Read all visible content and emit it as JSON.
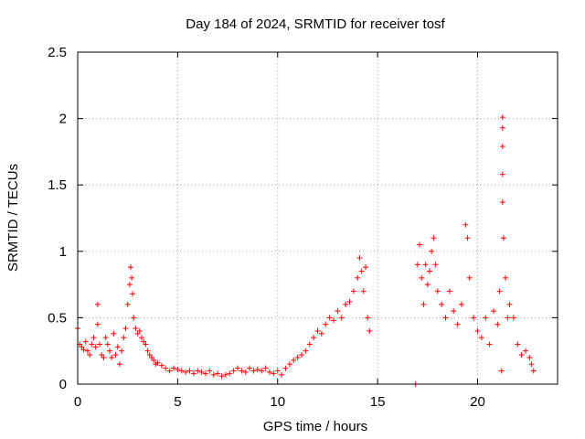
{
  "chart_data": {
    "type": "scatter",
    "title": "Day 184 of 2024, SRMTID for receiver tosf",
    "xlabel": "GPS time / hours",
    "ylabel": "SRMTID / TECUs",
    "xlim": [
      0,
      24
    ],
    "ylim": [
      0,
      2.5
    ],
    "xticks": [
      0,
      5,
      10,
      15,
      20
    ],
    "xtick_labels": [
      "0",
      "5",
      "10",
      "15",
      "20"
    ],
    "yticks": [
      0,
      0.5,
      1,
      1.5,
      2,
      2.5
    ],
    "ytick_labels": [
      "0",
      "0.5",
      "1",
      "1.5",
      "2",
      "2.5"
    ],
    "grid": true,
    "marker": "+",
    "color": "#ff0000",
    "series": [
      {
        "name": "SRMTID",
        "points": [
          [
            0.0,
            0.42
          ],
          [
            0.1,
            0.3
          ],
          [
            0.2,
            0.28
          ],
          [
            0.3,
            0.26
          ],
          [
            0.4,
            0.32
          ],
          [
            0.5,
            0.25
          ],
          [
            0.6,
            0.22
          ],
          [
            0.7,
            0.3
          ],
          [
            0.8,
            0.35
          ],
          [
            0.9,
            0.28
          ],
          [
            1.0,
            0.45
          ],
          [
            1.0,
            0.6
          ],
          [
            1.1,
            0.3
          ],
          [
            1.2,
            0.22
          ],
          [
            1.3,
            0.2
          ],
          [
            1.4,
            0.35
          ],
          [
            1.5,
            0.3
          ],
          [
            1.6,
            0.25
          ],
          [
            1.7,
            0.2
          ],
          [
            1.8,
            0.38
          ],
          [
            1.9,
            0.22
          ],
          [
            2.0,
            0.28
          ],
          [
            2.1,
            0.15
          ],
          [
            2.2,
            0.25
          ],
          [
            2.3,
            0.35
          ],
          [
            2.4,
            0.42
          ],
          [
            2.5,
            0.6
          ],
          [
            2.6,
            0.75
          ],
          [
            2.65,
            0.88
          ],
          [
            2.7,
            0.8
          ],
          [
            2.75,
            0.68
          ],
          [
            2.8,
            0.5
          ],
          [
            2.9,
            0.42
          ],
          [
            3.0,
            0.38
          ],
          [
            3.1,
            0.4
          ],
          [
            3.2,
            0.35
          ],
          [
            3.3,
            0.32
          ],
          [
            3.4,
            0.3
          ],
          [
            3.5,
            0.25
          ],
          [
            3.6,
            0.22
          ],
          [
            3.7,
            0.2
          ],
          [
            3.8,
            0.18
          ],
          [
            3.9,
            0.15
          ],
          [
            4.0,
            0.16
          ],
          [
            4.2,
            0.14
          ],
          [
            4.4,
            0.12
          ],
          [
            4.6,
            0.1
          ],
          [
            4.8,
            0.12
          ],
          [
            5.0,
            0.11
          ],
          [
            5.2,
            0.1
          ],
          [
            5.4,
            0.09
          ],
          [
            5.6,
            0.1
          ],
          [
            5.8,
            0.08
          ],
          [
            6.0,
            0.1
          ],
          [
            6.2,
            0.09
          ],
          [
            6.4,
            0.08
          ],
          [
            6.6,
            0.1
          ],
          [
            6.8,
            0.07
          ],
          [
            7.0,
            0.08
          ],
          [
            7.2,
            0.06
          ],
          [
            7.4,
            0.07
          ],
          [
            7.6,
            0.08
          ],
          [
            7.8,
            0.1
          ],
          [
            8.0,
            0.12
          ],
          [
            8.2,
            0.1
          ],
          [
            8.4,
            0.09
          ],
          [
            8.6,
            0.12
          ],
          [
            8.8,
            0.1
          ],
          [
            9.0,
            0.11
          ],
          [
            9.2,
            0.1
          ],
          [
            9.4,
            0.12
          ],
          [
            9.6,
            0.09
          ],
          [
            9.8,
            0.08
          ],
          [
            10.0,
            0.1
          ],
          [
            10.2,
            0.07
          ],
          [
            10.4,
            0.12
          ],
          [
            10.6,
            0.15
          ],
          [
            10.8,
            0.18
          ],
          [
            11.0,
            0.2
          ],
          [
            11.2,
            0.22
          ],
          [
            11.4,
            0.25
          ],
          [
            11.6,
            0.3
          ],
          [
            11.8,
            0.35
          ],
          [
            12.0,
            0.4
          ],
          [
            12.2,
            0.38
          ],
          [
            12.4,
            0.45
          ],
          [
            12.6,
            0.5
          ],
          [
            12.8,
            0.48
          ],
          [
            13.0,
            0.55
          ],
          [
            13.2,
            0.5
          ],
          [
            13.4,
            0.6
          ],
          [
            13.6,
            0.62
          ],
          [
            13.8,
            0.7
          ],
          [
            14.0,
            0.8
          ],
          [
            14.1,
            0.95
          ],
          [
            14.2,
            0.85
          ],
          [
            14.3,
            0.7
          ],
          [
            14.4,
            0.88
          ],
          [
            14.5,
            0.5
          ],
          [
            14.6,
            0.4
          ],
          [
            16.9,
            0.0
          ],
          [
            17.0,
            0.9
          ],
          [
            17.1,
            1.05
          ],
          [
            17.2,
            0.8
          ],
          [
            17.3,
            0.6
          ],
          [
            17.4,
            0.9
          ],
          [
            17.5,
            0.75
          ],
          [
            17.6,
            0.85
          ],
          [
            17.7,
            1.0
          ],
          [
            17.8,
            1.1
          ],
          [
            17.9,
            0.9
          ],
          [
            18.0,
            0.7
          ],
          [
            18.2,
            0.6
          ],
          [
            18.4,
            0.5
          ],
          [
            18.6,
            0.7
          ],
          [
            18.8,
            0.55
          ],
          [
            19.0,
            0.45
          ],
          [
            19.2,
            0.6
          ],
          [
            19.4,
            1.2
          ],
          [
            19.5,
            1.1
          ],
          [
            19.6,
            0.8
          ],
          [
            19.8,
            0.5
          ],
          [
            20.0,
            0.4
          ],
          [
            20.2,
            0.35
          ],
          [
            20.4,
            0.5
          ],
          [
            20.6,
            0.3
          ],
          [
            20.8,
            0.55
          ],
          [
            21.0,
            0.45
          ],
          [
            21.1,
            0.7
          ],
          [
            21.2,
            0.1
          ],
          [
            21.25,
            2.01
          ],
          [
            21.25,
            1.93
          ],
          [
            21.25,
            1.79
          ],
          [
            21.25,
            1.58
          ],
          [
            21.25,
            1.37
          ],
          [
            21.3,
            1.1
          ],
          [
            21.4,
            0.8
          ],
          [
            21.5,
            0.5
          ],
          [
            21.6,
            0.6
          ],
          [
            21.8,
            0.5
          ],
          [
            22.0,
            0.3
          ],
          [
            22.2,
            0.22
          ],
          [
            22.4,
            0.25
          ],
          [
            22.6,
            0.2
          ],
          [
            22.7,
            0.15
          ],
          [
            22.8,
            0.1
          ]
        ]
      }
    ]
  }
}
